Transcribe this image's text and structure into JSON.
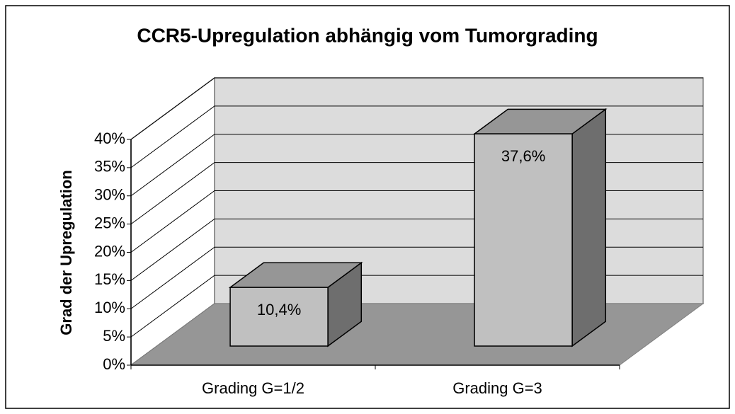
{
  "chart_data": {
    "type": "bar3d",
    "title": "CCR5-Upregulation abhängig vom Tumorgrading",
    "y_label": "Grad der Upregulation",
    "categories": [
      "Grading G=1/2",
      "Grading G=3"
    ],
    "values": [
      10.4,
      37.6
    ],
    "value_labels": [
      "10,4%",
      "37,6%"
    ],
    "ylim": [
      0,
      40
    ],
    "yticks": [
      {
        "value": 0,
        "label": "0%"
      },
      {
        "value": 5,
        "label": "5%"
      },
      {
        "value": 10,
        "label": "10%"
      },
      {
        "value": 15,
        "label": "15%"
      },
      {
        "value": 20,
        "label": "20%"
      },
      {
        "value": 25,
        "label": "25%"
      },
      {
        "value": 30,
        "label": "30%"
      },
      {
        "value": 35,
        "label": "35%"
      },
      {
        "value": 40,
        "label": "40%"
      }
    ],
    "grid": true,
    "colors": {
      "front": "#c0c0c0",
      "top": "#969696",
      "side": "#6e6e6e",
      "wall": "#dcdcdc",
      "floor": "#969696"
    }
  }
}
